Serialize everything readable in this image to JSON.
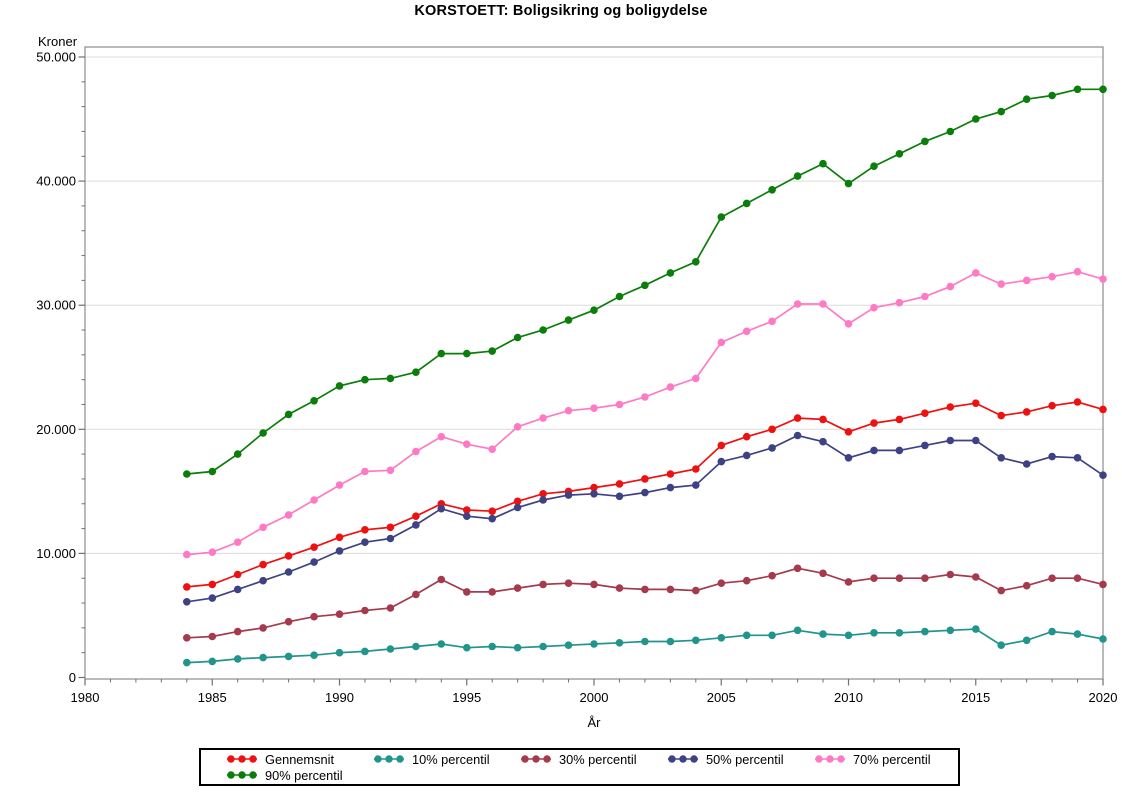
{
  "title": "KORSTOETT: Boligsikring og boligydelse",
  "chart_data": {
    "type": "line",
    "title": "KORSTOETT: Boligsikring og boligydelse",
    "xlabel": "År",
    "ylabel": "Kroner",
    "xlim": [
      1980,
      2020
    ],
    "ylim": [
      0,
      50000
    ],
    "x_ticks": [
      1980,
      1985,
      1990,
      1995,
      2000,
      2005,
      2010,
      2015,
      2020
    ],
    "x_minor_tick_step": 1,
    "y_ticks": [
      0,
      10000,
      20000,
      30000,
      40000,
      50000
    ],
    "y_tick_labels": [
      "0",
      "10.000",
      "20.000",
      "30.000",
      "40.000",
      "50.000"
    ],
    "y_minor_tick_step": 2000,
    "grid": "horizontal-major",
    "legend_position": "bottom",
    "marker_style": "filled-circle",
    "x": [
      1984,
      1985,
      1986,
      1987,
      1988,
      1989,
      1990,
      1991,
      1992,
      1993,
      1994,
      1995,
      1996,
      1997,
      1998,
      1999,
      2000,
      2001,
      2002,
      2003,
      2004,
      2005,
      2006,
      2007,
      2008,
      2009,
      2010,
      2011,
      2012,
      2013,
      2014,
      2015,
      2016,
      2017,
      2018,
      2019,
      2020
    ],
    "series": [
      {
        "name": "Gennemsnit",
        "color": "#ee1111",
        "values": [
          7300,
          7500,
          8300,
          9100,
          9800,
          10500,
          11300,
          11900,
          12100,
          13000,
          14000,
          13500,
          13400,
          14200,
          14800,
          15000,
          15300,
          15600,
          16000,
          16400,
          16800,
          18700,
          19400,
          20000,
          20900,
          20800,
          19800,
          20500,
          20800,
          21300,
          21800,
          22100,
          21100,
          21400,
          21900,
          22200,
          21600
        ]
      },
      {
        "name": "10% percentil",
        "color": "#21948b",
        "values": [
          1200,
          1300,
          1500,
          1600,
          1700,
          1800,
          2000,
          2100,
          2300,
          2500,
          2700,
          2400,
          2500,
          2400,
          2500,
          2600,
          2700,
          2800,
          2900,
          2900,
          3000,
          3200,
          3400,
          3400,
          3800,
          3500,
          3400,
          3600,
          3600,
          3700,
          3800,
          3900,
          2600,
          3000,
          3700,
          3500,
          3100
        ]
      },
      {
        "name": "30% percentil",
        "color": "#a63a4d",
        "values": [
          3200,
          3300,
          3700,
          4000,
          4500,
          4900,
          5100,
          5400,
          5600,
          6700,
          7900,
          6900,
          6900,
          7200,
          7500,
          7600,
          7500,
          7200,
          7100,
          7100,
          7000,
          7600,
          7800,
          8200,
          8800,
          8400,
          7700,
          8000,
          8000,
          8000,
          8300,
          8100,
          7000,
          7400,
          8000,
          8000,
          7500
        ]
      },
      {
        "name": "50% percentil",
        "color": "#3f4282",
        "values": [
          6100,
          6400,
          7100,
          7800,
          8500,
          9300,
          10200,
          10900,
          11200,
          12300,
          13600,
          13000,
          12800,
          13700,
          14300,
          14700,
          14800,
          14600,
          14900,
          15300,
          15500,
          17400,
          17900,
          18500,
          19500,
          19000,
          17700,
          18300,
          18300,
          18700,
          19100,
          19100,
          17700,
          17200,
          17800,
          17700,
          16300
        ]
      },
      {
        "name": "70% percentil",
        "color": "#ff7ac4",
        "values": [
          9900,
          10100,
          10900,
          12100,
          13100,
          14300,
          15500,
          16600,
          16700,
          18200,
          19400,
          18800,
          18400,
          20200,
          20900,
          21500,
          21700,
          22000,
          22600,
          23400,
          24100,
          27000,
          27900,
          28700,
          30100,
          30100,
          28500,
          29800,
          30200,
          30700,
          31500,
          32600,
          31700,
          32000,
          32300,
          32700,
          32100
        ]
      },
      {
        "name": "90% percentil",
        "color": "#0a7d0a",
        "values": [
          16400,
          16600,
          18000,
          19700,
          21200,
          22300,
          23500,
          24000,
          24100,
          24600,
          26100,
          26100,
          26300,
          27400,
          28000,
          28800,
          29600,
          30700,
          31600,
          32600,
          33500,
          37100,
          38200,
          39300,
          40400,
          41400,
          39800,
          41200,
          42200,
          43200,
          44000,
          45000,
          45600,
          46600,
          46900,
          47400,
          47400
        ]
      }
    ]
  }
}
